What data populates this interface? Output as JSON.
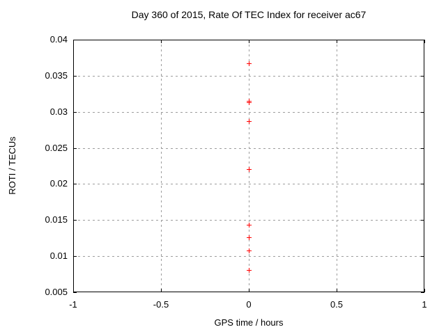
{
  "window": {
    "background": "#ffffff"
  },
  "chart_data": {
    "type": "scatter",
    "title": "Day 360 of 2015, Rate Of TEC Index for receiver ac67",
    "xlabel": "GPS time / hours",
    "ylabel": "ROTI / TECUs",
    "xlim": [
      -1,
      1
    ],
    "ylim": [
      0.005,
      0.04
    ],
    "x_ticks": [
      -1,
      -0.5,
      0,
      0.5,
      1
    ],
    "x_tick_labels": [
      "-1",
      "-0.5",
      "0",
      "0.5",
      "1"
    ],
    "y_ticks": [
      0.04,
      0.035,
      0.03,
      0.025,
      0.02,
      0.015,
      0.01,
      0.005
    ],
    "y_tick_labels": [
      "0.04",
      "0.035",
      "0.03",
      "0.025",
      "0.02",
      "0.015",
      "0.01",
      "0.005"
    ],
    "grid": true,
    "legend": "none",
    "marker": "plus",
    "marker_color": "#ff0000",
    "grid_color": "#9c9c9c",
    "border_color": "#000000",
    "series": [
      {
        "name": "",
        "points": [
          {
            "x": 0,
            "y": 0.0367
          },
          {
            "x": 0,
            "y": 0.0315
          },
          {
            "x": 0,
            "y": 0.0313
          },
          {
            "x": 0,
            "y": 0.0287
          },
          {
            "x": 0,
            "y": 0.0221
          },
          {
            "x": 0,
            "y": 0.0144
          },
          {
            "x": 0,
            "y": 0.0126
          },
          {
            "x": 0,
            "y": 0.0108
          },
          {
            "x": 0,
            "y": 0.0081
          }
        ]
      }
    ]
  }
}
